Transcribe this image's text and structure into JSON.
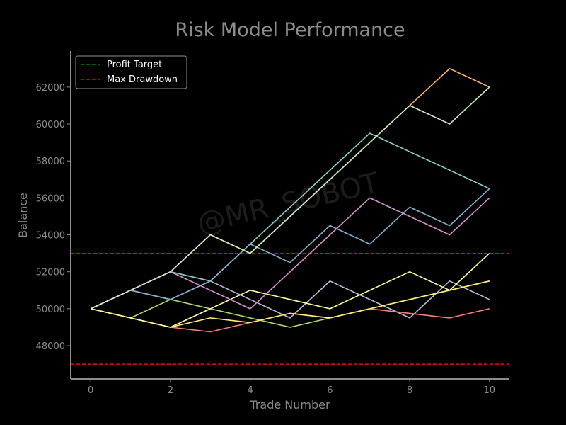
{
  "chart_data": {
    "type": "line",
    "title": "Risk Model Performance",
    "xlabel": "Trade Number",
    "ylabel": "Balance",
    "xlim": [
      -0.5,
      10.5
    ],
    "ylim": [
      46200,
      63950
    ],
    "x_ticks": [
      0,
      2,
      4,
      6,
      8,
      10
    ],
    "y_ticks": [
      48000,
      50000,
      52000,
      54000,
      56000,
      58000,
      60000,
      62000
    ],
    "grid": false,
    "legend_position": "top-left",
    "x": [
      0,
      1,
      2,
      3,
      4,
      5,
      6,
      7,
      8,
      9,
      10
    ],
    "series": [
      {
        "color": "#8dd3c7",
        "values": [
          50000,
          51000,
          52000,
          51500,
          53500,
          55500,
          57500,
          59500,
          58500,
          57500,
          56500
        ]
      },
      {
        "color": "#b3de69",
        "values": [
          50000,
          49500,
          50500,
          50000,
          49500,
          49000,
          49500,
          50000,
          50500,
          51000,
          51500
        ]
      },
      {
        "color": "#bebada",
        "values": [
          50000,
          51000,
          50500,
          51500,
          50500,
          49500,
          51500,
          50500,
          49500,
          51500,
          50500
        ]
      },
      {
        "color": "#fb8072",
        "values": [
          50000,
          49500,
          49000,
          48750,
          49250,
          49750,
          49500,
          50000,
          49750,
          49500,
          50000
        ]
      },
      {
        "color": "#80b1d3",
        "values": [
          50000,
          51000,
          50500,
          51500,
          53500,
          52500,
          54500,
          53500,
          55500,
          54500,
          56500
        ]
      },
      {
        "color": "#ffed6f",
        "values": [
          50000,
          49500,
          49000,
          49500,
          49250,
          49750,
          49500,
          50000,
          50500,
          51000,
          51500
        ]
      },
      {
        "color": "#ffff99",
        "values": [
          50000,
          49500,
          49000,
          50000,
          51000,
          50500,
          50000,
          51000,
          52000,
          51000,
          53000
        ]
      },
      {
        "color": "#da8fd0",
        "values": [
          50000,
          51000,
          52000,
          51000,
          50000,
          52000,
          54000,
          56000,
          55000,
          54000,
          56000
        ]
      },
      {
        "color": "#fdb462",
        "values": [
          50000,
          51000,
          52000,
          54000,
          53000,
          55000,
          57000,
          59000,
          61000,
          63000,
          62000
        ]
      },
      {
        "color": "#ccebc5",
        "values": [
          50000,
          51000,
          52000,
          54000,
          53000,
          55000,
          57000,
          59000,
          61000,
          60000,
          62000
        ]
      }
    ],
    "reference_lines": [
      {
        "name": "Profit Target",
        "value": 53000,
        "color": "#008000",
        "style": "dashed"
      },
      {
        "name": "Max Drawdown",
        "value": 47000,
        "color": "#ff0000",
        "style": "dashed"
      }
    ],
    "watermark": "@MR_SOBOT"
  }
}
